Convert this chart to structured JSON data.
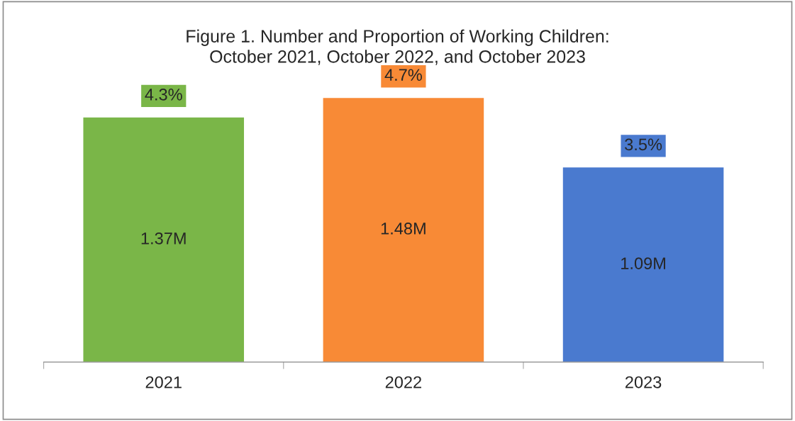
{
  "chart_data": {
    "type": "bar",
    "title": "Figure 1. Number and Proportion of Working Children:\nOctober 2021, October 2022, and October 2023",
    "categories": [
      "2021",
      "2022",
      "2023"
    ],
    "values": [
      1.37,
      1.48,
      1.09
    ],
    "colors": [
      "#7ab648",
      "#f88a36",
      "#4a7acf"
    ],
    "value_labels": [
      "1.37M",
      "1.48M",
      "1.09M"
    ],
    "annotations": [
      {
        "text": "4.3%",
        "x": "2021",
        "y": 1.37
      },
      {
        "text": "4.7%",
        "x": "2022",
        "y": 1.48
      },
      {
        "text": "3.5%",
        "x": "2023",
        "y": 1.09
      }
    ],
    "grid": false,
    "legend": false
  }
}
